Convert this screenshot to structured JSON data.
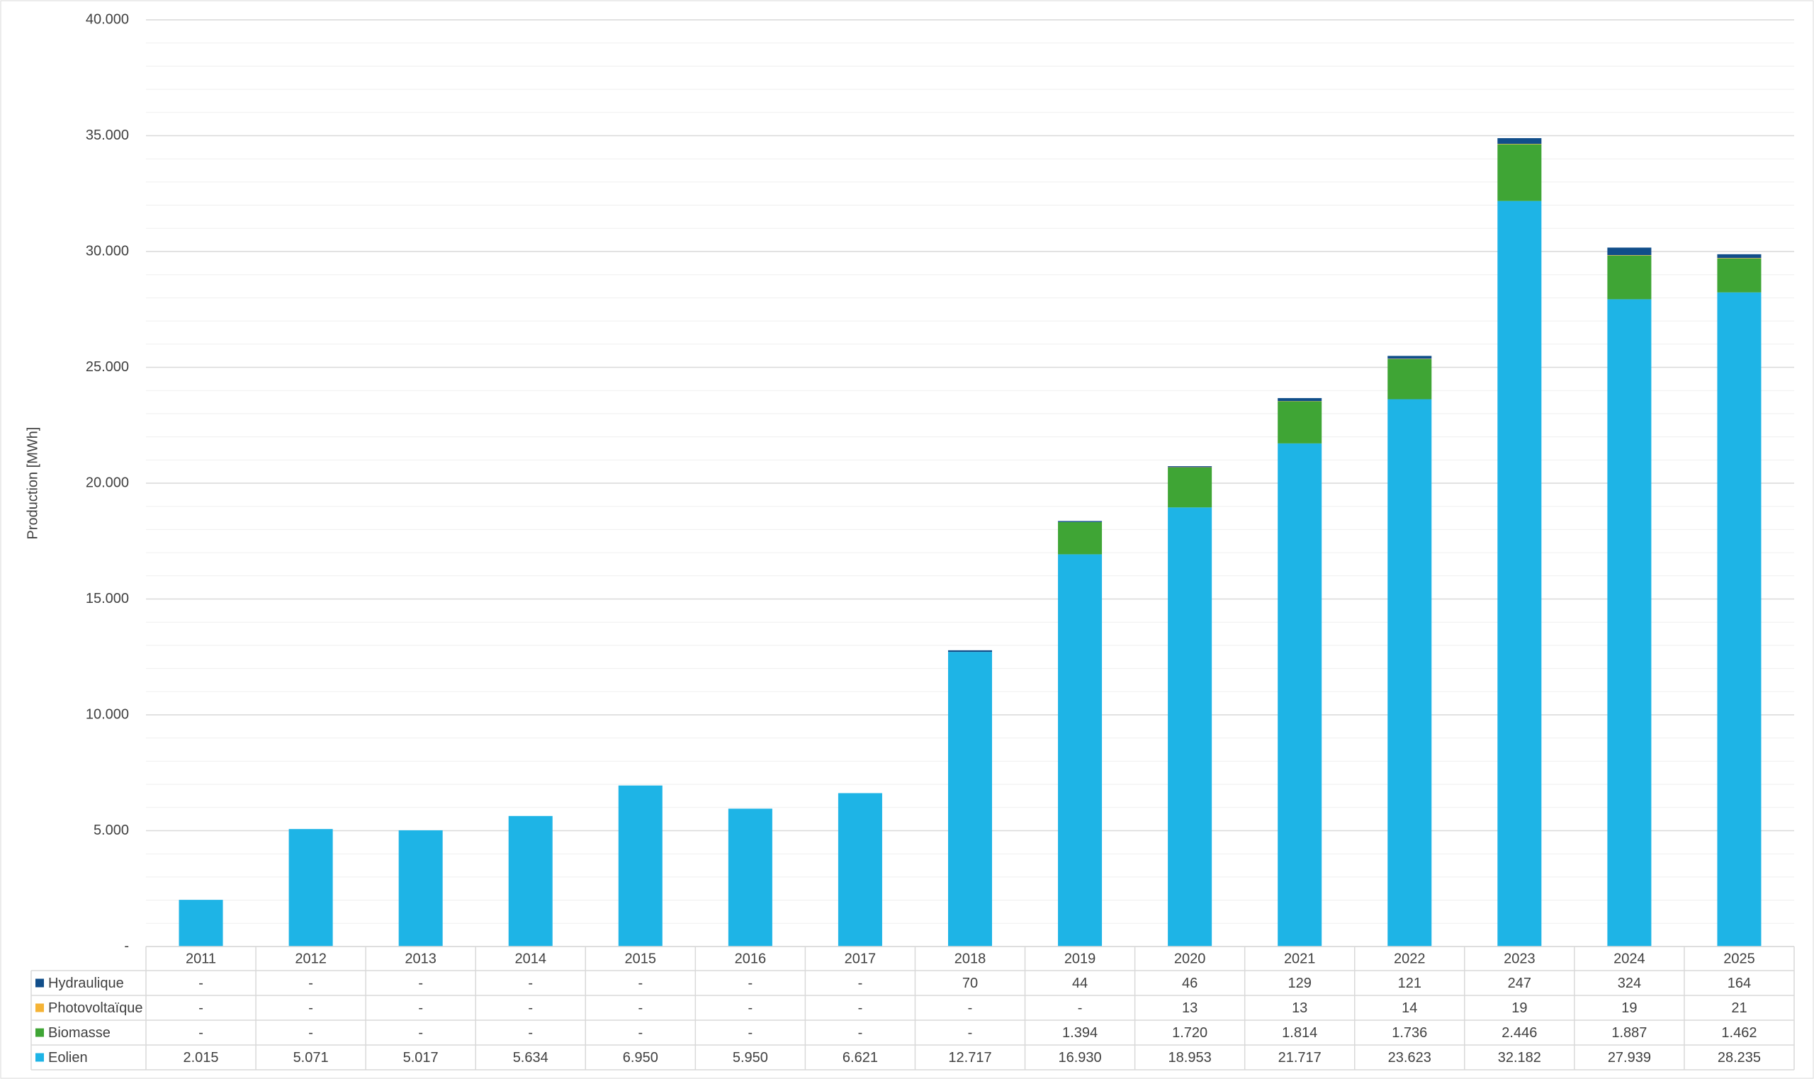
{
  "chart_data": {
    "type": "stacked_bar",
    "y_label": "Production [MWh]",
    "categories": [
      "2011",
      "2012",
      "2013",
      "2014",
      "2015",
      "2016",
      "2017",
      "2018",
      "2019",
      "2020",
      "2021",
      "2022",
      "2023",
      "2024",
      "2025"
    ],
    "series": [
      {
        "name": "Eolien",
        "color": "#1eb4e6",
        "values": [
          2015,
          5071,
          5017,
          5634,
          6950,
          5950,
          6621,
          12717,
          16930,
          18953,
          21717,
          23623,
          32182,
          27939,
          28235
        ],
        "value_labels": [
          "2.015",
          "5.071",
          "5.017",
          "5.634",
          "6.950",
          "5.950",
          "6.621",
          "12.717",
          "16.930",
          "18.953",
          "21.717",
          "23.623",
          "32.182",
          "27.939",
          "28.235"
        ]
      },
      {
        "name": "Biomasse",
        "color": "#3fa535",
        "values": [
          0,
          0,
          0,
          0,
          0,
          0,
          0,
          0,
          1394,
          1720,
          1814,
          1736,
          2446,
          1887,
          1462
        ],
        "value_labels": [
          "-",
          "-",
          "-",
          "-",
          "-",
          "-",
          "-",
          "-",
          "1.394",
          "1.720",
          "1.814",
          "1.736",
          "2.446",
          "1.887",
          "1.462"
        ]
      },
      {
        "name": "Photovoltaïque",
        "color": "#f5b335",
        "values": [
          0,
          0,
          0,
          0,
          0,
          0,
          0,
          0,
          0,
          13,
          13,
          14,
          19,
          19,
          21
        ],
        "value_labels": [
          "-",
          "-",
          "-",
          "-",
          "-",
          "-",
          "-",
          "-",
          "-",
          "13",
          "13",
          "14",
          "19",
          "19",
          "21"
        ]
      },
      {
        "name": "Hydraulique",
        "color": "#114e8a",
        "values": [
          0,
          0,
          0,
          0,
          0,
          0,
          0,
          70,
          44,
          46,
          129,
          121,
          247,
          324,
          164
        ],
        "value_labels": [
          "-",
          "-",
          "-",
          "-",
          "-",
          "-",
          "-",
          "70",
          "44",
          "46",
          "129",
          "121",
          "247",
          "324",
          "164"
        ]
      }
    ],
    "ylim": [
      0,
      40000
    ],
    "yticks": [
      {
        "value": 0,
        "label": "-"
      },
      {
        "value": 5000,
        "label": "5.000"
      },
      {
        "value": 10000,
        "label": "10.000"
      },
      {
        "value": 15000,
        "label": "15.000"
      },
      {
        "value": 20000,
        "label": "20.000"
      },
      {
        "value": 25000,
        "label": "25.000"
      },
      {
        "value": 30000,
        "label": "30.000"
      },
      {
        "value": 35000,
        "label": "35.000"
      },
      {
        "value": 40000,
        "label": "40.000"
      }
    ],
    "grid": true,
    "minor_grid": true
  }
}
